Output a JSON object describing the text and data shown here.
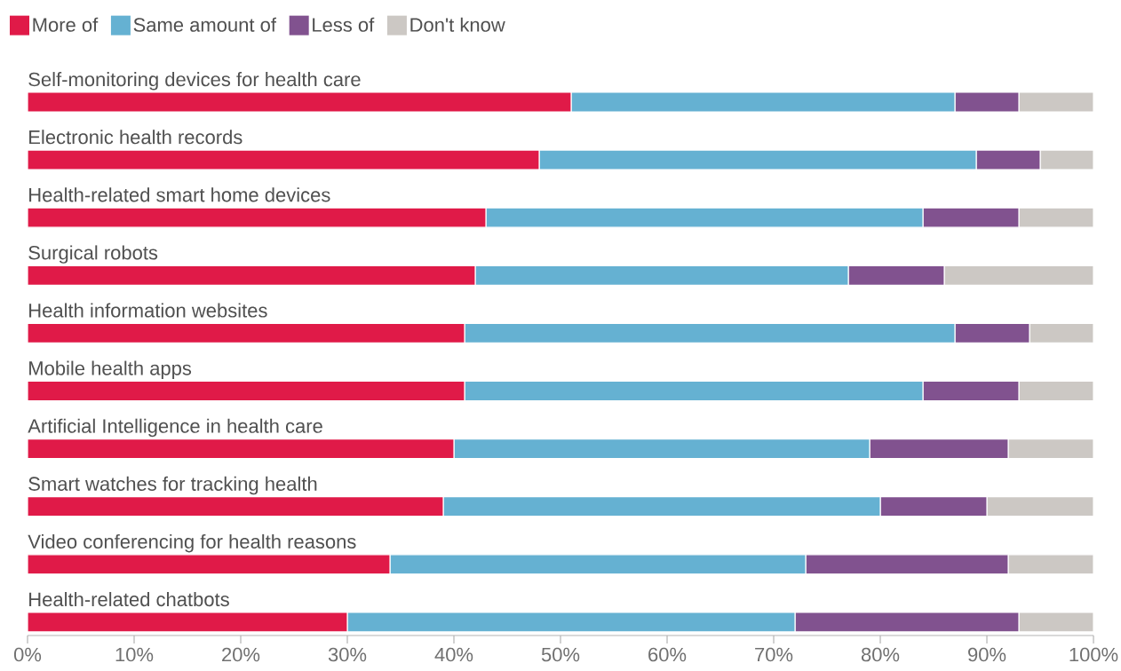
{
  "chart_data": {
    "type": "bar",
    "orientation": "horizontal",
    "stacked": true,
    "categories": [
      "Self-monitoring devices for health care",
      "Electronic health records",
      "Health-related smart home devices",
      "Surgical robots",
      "Health information websites",
      "Mobile health apps",
      "Artificial Intelligence in health care",
      "Smart watches for tracking health",
      "Video conferencing for health reasons",
      "Health-related chatbots"
    ],
    "series": [
      {
        "name": "More of",
        "color": "#e01a48",
        "values": [
          51,
          48,
          43,
          42,
          41,
          41,
          40,
          39,
          34,
          30
        ]
      },
      {
        "name": "Same amount of",
        "color": "#65b1d2",
        "values": [
          36,
          41,
          41,
          35,
          46,
          43,
          39,
          41,
          39,
          42
        ]
      },
      {
        "name": "Less of",
        "color": "#81528f",
        "values": [
          6,
          6,
          9,
          9,
          7,
          9,
          13,
          10,
          19,
          21
        ]
      },
      {
        "name": "Don't know",
        "color": "#ccc8c4",
        "values": [
          7,
          5,
          7,
          14,
          6,
          7,
          8,
          10,
          8,
          7
        ]
      }
    ],
    "xlim": [
      0,
      100
    ],
    "xticks": [
      {
        "value": 0,
        "label": "0%"
      },
      {
        "value": 10,
        "label": "10%"
      },
      {
        "value": 20,
        "label": "20%"
      },
      {
        "value": 30,
        "label": "30%"
      },
      {
        "value": 40,
        "label": "40%"
      },
      {
        "value": 50,
        "label": "50%"
      },
      {
        "value": 60,
        "label": "60%"
      },
      {
        "value": 70,
        "label": "70%"
      },
      {
        "value": 80,
        "label": "80%"
      },
      {
        "value": 90,
        "label": "90%"
      },
      {
        "value": 100,
        "label": "100%"
      }
    ],
    "legend": "top left"
  }
}
